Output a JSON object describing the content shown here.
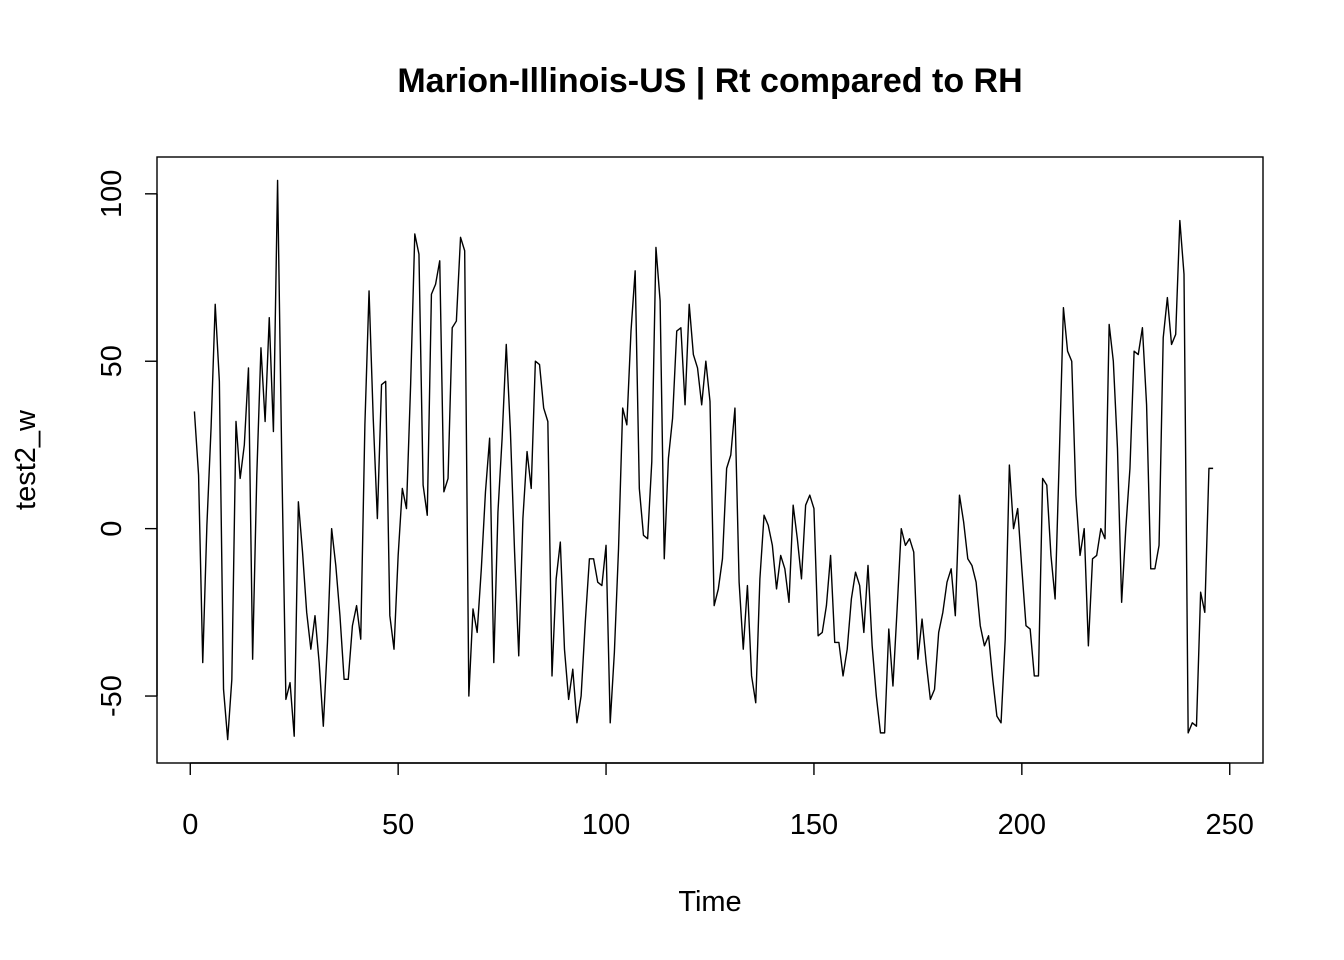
{
  "chart_data": {
    "type": "line",
    "title": "Marion-Illinois-US | Rt compared to RH",
    "xlabel": "Time",
    "ylabel": "test2_w",
    "xlim": [
      -8,
      258
    ],
    "ylim": [
      -70,
      111
    ],
    "x_ticks": [
      0,
      50,
      100,
      150,
      200,
      250
    ],
    "y_ticks": [
      -50,
      0,
      50,
      100
    ],
    "x_tick_labels": [
      "0",
      "50",
      "100",
      "150",
      "200",
      "250"
    ],
    "y_tick_labels": [
      "-50",
      "0",
      "50",
      "100"
    ],
    "grid": false,
    "legend": "none",
    "x_start": 1,
    "series": [
      {
        "values": [
          35,
          16,
          -40,
          1,
          30,
          67,
          44,
          -48,
          -63,
          -45,
          32,
          15,
          25,
          48,
          -39,
          16,
          54,
          32,
          63,
          29,
          104,
          21,
          -51,
          -46,
          -62,
          8,
          -7,
          -25,
          -36,
          -26,
          -40,
          -59,
          -34,
          0,
          -11,
          -26,
          -45,
          -45,
          -29,
          -23,
          -33,
          31,
          71,
          33,
          3,
          43,
          44,
          -26,
          -36,
          -8,
          12,
          6,
          43,
          88,
          82,
          13,
          4,
          70,
          73,
          80,
          11,
          15,
          60,
          62,
          87,
          83,
          -50,
          -24,
          -31,
          -12,
          11,
          27,
          -40,
          5,
          27,
          55,
          29,
          -7,
          -38,
          3,
          23,
          12,
          50,
          49,
          36,
          32,
          -44,
          -15,
          -4,
          -36,
          -51,
          -42,
          -58,
          -50,
          -28,
          -9,
          -9,
          -16,
          -17,
          -5,
          -58,
          -37,
          -6,
          36,
          31,
          59,
          77,
          12,
          -2,
          -3,
          20,
          84,
          68,
          -9,
          21,
          33,
          59,
          60,
          37,
          67,
          52,
          48,
          37,
          50,
          38,
          -23,
          -18,
          -9,
          18,
          22,
          36,
          -16,
          -36,
          -17,
          -44,
          -52,
          -15,
          4,
          1,
          -5,
          -18,
          -8,
          -12,
          -22,
          7,
          -3,
          -15,
          7,
          10,
          6,
          -32,
          -31,
          -23,
          -8,
          -34,
          -34,
          -44,
          -36,
          -21,
          -13,
          -17,
          -31,
          -11,
          -35,
          -50,
          -61,
          -61,
          -30,
          -47,
          -24,
          0,
          -5,
          -3,
          -7,
          -39,
          -27,
          -40,
          -51,
          -48,
          -31,
          -25,
          -16,
          -12,
          -26,
          10,
          2,
          -9,
          -11,
          -16,
          -29,
          -35,
          -32,
          -45,
          -56,
          -58,
          -33,
          19,
          0,
          6,
          -12,
          -29,
          -30,
          -44,
          -44,
          15,
          13,
          -8,
          -21,
          21,
          66,
          53,
          50,
          10,
          -8,
          0,
          -35,
          -9,
          -8,
          0,
          -3,
          61,
          50,
          24,
          -22,
          0,
          18,
          53,
          52,
          60,
          37,
          -12,
          -12,
          -5,
          57,
          69,
          55,
          58,
          92,
          76,
          -61,
          -58,
          -59,
          -19,
          -25,
          18,
          18
        ]
      }
    ]
  }
}
